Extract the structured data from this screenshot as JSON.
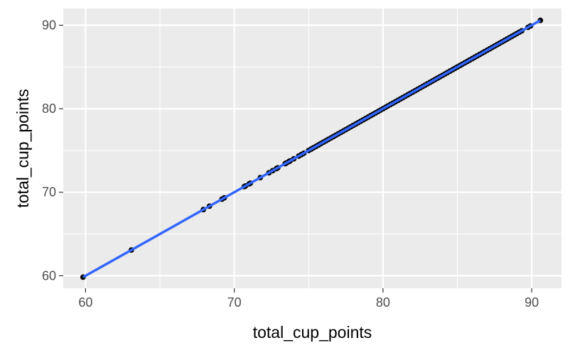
{
  "chart_data": {
    "type": "scatter",
    "title": "",
    "xlabel": "total_cup_points",
    "ylabel": "total_cup_points",
    "xlim": [
      58.5,
      92
    ],
    "ylim": [
      58.5,
      92
    ],
    "x_ticks": [
      60,
      70,
      80,
      90
    ],
    "y_ticks": [
      60,
      70,
      80,
      90
    ],
    "x_tick_labels": [
      "60",
      "70",
      "80",
      "90"
    ],
    "y_tick_labels": [
      "60",
      "70",
      "80",
      "90"
    ],
    "grid": true,
    "panel_background": "#ebebeb",
    "point_color": "#000000",
    "trend_color": "#3366ff",
    "series": [
      {
        "values": [
          [
            59.83,
            59.83
          ],
          [
            63.08,
            63.08
          ],
          [
            67.92,
            67.92
          ],
          [
            68.33,
            68.33
          ],
          [
            69.17,
            69.17
          ],
          [
            69.33,
            69.33
          ],
          [
            70.67,
            70.67
          ],
          [
            70.75,
            70.75
          ],
          [
            71.0,
            71.0
          ],
          [
            71.08,
            71.08
          ],
          [
            71.75,
            71.75
          ],
          [
            72.33,
            72.33
          ],
          [
            72.58,
            72.58
          ],
          [
            72.83,
            72.83
          ],
          [
            72.92,
            72.92
          ],
          [
            73.42,
            73.42
          ],
          [
            73.5,
            73.5
          ],
          [
            73.67,
            73.67
          ],
          [
            73.75,
            73.75
          ],
          [
            74.0,
            74.0
          ],
          [
            74.33,
            74.33
          ],
          [
            74.5,
            74.5
          ],
          [
            74.67,
            74.67
          ],
          [
            75.0,
            75.0
          ],
          [
            75.17,
            75.17
          ],
          [
            75.33,
            75.33
          ],
          [
            75.5,
            75.5
          ],
          [
            75.67,
            75.67
          ],
          [
            75.83,
            75.83
          ],
          [
            76.0,
            76.0
          ],
          [
            76.17,
            76.17
          ],
          [
            76.33,
            76.33
          ],
          [
            76.5,
            76.5
          ],
          [
            76.67,
            76.67
          ],
          [
            76.83,
            76.83
          ],
          [
            77.0,
            77.0
          ],
          [
            77.17,
            77.17
          ],
          [
            77.33,
            77.33
          ],
          [
            77.5,
            77.5
          ],
          [
            77.67,
            77.67
          ],
          [
            77.83,
            77.83
          ],
          [
            78.0,
            78.0
          ],
          [
            78.17,
            78.17
          ],
          [
            78.33,
            78.33
          ],
          [
            78.5,
            78.5
          ],
          [
            78.67,
            78.67
          ],
          [
            78.83,
            78.83
          ],
          [
            79.0,
            79.0
          ],
          [
            79.17,
            79.17
          ],
          [
            79.33,
            79.33
          ],
          [
            79.5,
            79.5
          ],
          [
            79.67,
            79.67
          ],
          [
            79.83,
            79.83
          ],
          [
            80.0,
            80.0
          ],
          [
            80.17,
            80.17
          ],
          [
            80.33,
            80.33
          ],
          [
            80.5,
            80.5
          ],
          [
            80.67,
            80.67
          ],
          [
            80.83,
            80.83
          ],
          [
            81.0,
            81.0
          ],
          [
            81.17,
            81.17
          ],
          [
            81.33,
            81.33
          ],
          [
            81.5,
            81.5
          ],
          [
            81.67,
            81.67
          ],
          [
            81.83,
            81.83
          ],
          [
            82.0,
            82.0
          ],
          [
            82.17,
            82.17
          ],
          [
            82.33,
            82.33
          ],
          [
            82.5,
            82.5
          ],
          [
            82.67,
            82.67
          ],
          [
            82.83,
            82.83
          ],
          [
            83.0,
            83.0
          ],
          [
            83.17,
            83.17
          ],
          [
            83.33,
            83.33
          ],
          [
            83.5,
            83.5
          ],
          [
            83.67,
            83.67
          ],
          [
            83.83,
            83.83
          ],
          [
            84.0,
            84.0
          ],
          [
            84.17,
            84.17
          ],
          [
            84.33,
            84.33
          ],
          [
            84.5,
            84.5
          ],
          [
            84.67,
            84.67
          ],
          [
            84.83,
            84.83
          ],
          [
            85.0,
            85.0
          ],
          [
            85.17,
            85.17
          ],
          [
            85.33,
            85.33
          ],
          [
            85.5,
            85.5
          ],
          [
            85.67,
            85.67
          ],
          [
            85.83,
            85.83
          ],
          [
            86.0,
            86.0
          ],
          [
            86.17,
            86.17
          ],
          [
            86.33,
            86.33
          ],
          [
            86.5,
            86.5
          ],
          [
            86.67,
            86.67
          ],
          [
            86.83,
            86.83
          ],
          [
            87.0,
            87.0
          ],
          [
            87.17,
            87.17
          ],
          [
            87.33,
            87.33
          ],
          [
            87.5,
            87.5
          ],
          [
            87.67,
            87.67
          ],
          [
            87.83,
            87.83
          ],
          [
            88.0,
            88.0
          ],
          [
            88.17,
            88.17
          ],
          [
            88.33,
            88.33
          ],
          [
            88.5,
            88.5
          ],
          [
            88.67,
            88.67
          ],
          [
            88.83,
            88.83
          ],
          [
            89.0,
            89.0
          ],
          [
            89.17,
            89.17
          ],
          [
            89.33,
            89.33
          ],
          [
            89.75,
            89.75
          ],
          [
            89.92,
            89.92
          ],
          [
            90.58,
            90.58
          ]
        ]
      }
    ],
    "trend_line": [
      [
        59.83,
        59.83
      ],
      [
        90.58,
        90.58
      ]
    ]
  }
}
